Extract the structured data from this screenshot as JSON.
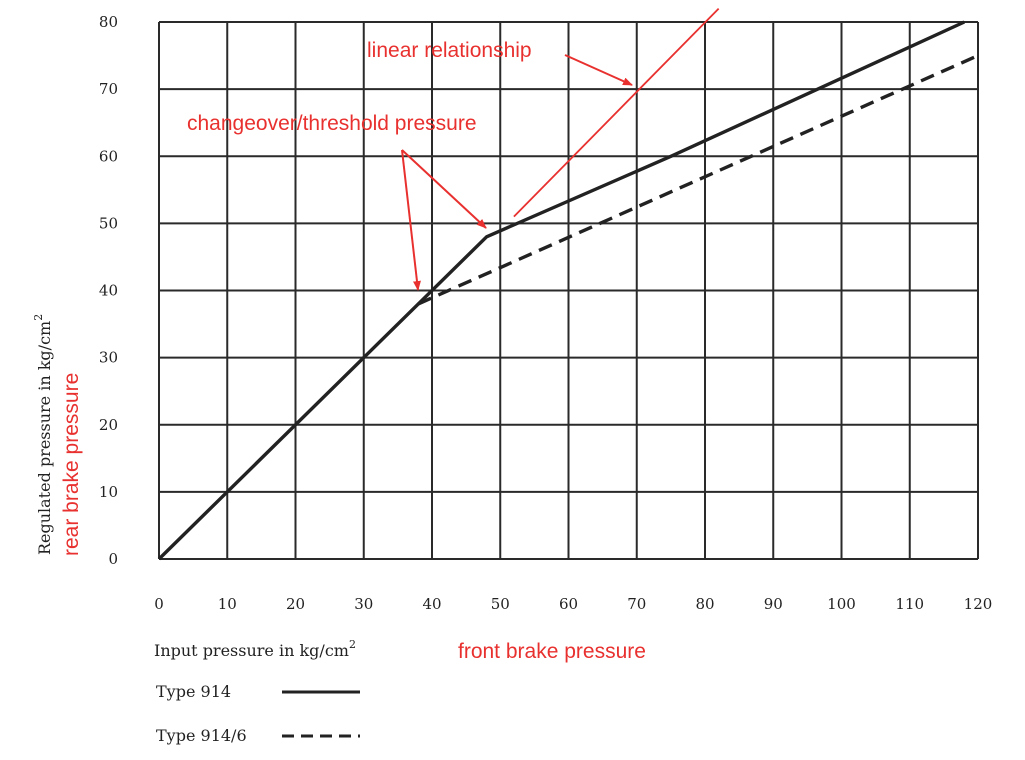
{
  "chart_data": {
    "type": "line",
    "xlabel_main": "Input pressure in kg/cm",
    "xlabel_sup": "2",
    "ylabel_main": "Regulated pressure in kg/cm",
    "ylabel_sup": "2",
    "xlim": [
      0,
      120
    ],
    "ylim": [
      0,
      80
    ],
    "x_ticks": [
      0,
      10,
      20,
      30,
      40,
      50,
      60,
      70,
      80,
      90,
      100,
      110,
      120
    ],
    "y_ticks": [
      0,
      10,
      20,
      30,
      40,
      50,
      60,
      70,
      80
    ],
    "grid": true,
    "series": [
      {
        "name": "Type 914",
        "style": "solid",
        "points": [
          [
            0,
            0
          ],
          [
            48,
            48
          ],
          [
            75,
            60
          ],
          [
            118,
            80
          ]
        ]
      },
      {
        "name": "Type 914/6",
        "style": "dashed",
        "points": [
          [
            38,
            38
          ],
          [
            48,
            42.5
          ],
          [
            120,
            75
          ]
        ]
      }
    ],
    "annotations": {
      "linear_relationship": "linear relationship",
      "threshold": "changeover/threshold pressure",
      "front": "front brake pressure",
      "rear": "rear brake pressure"
    },
    "linear_reference_line": [
      [
        52,
        51
      ],
      [
        82,
        82
      ]
    ],
    "annotation_color": "#e8312f",
    "legend_placement": "bottom-left"
  }
}
